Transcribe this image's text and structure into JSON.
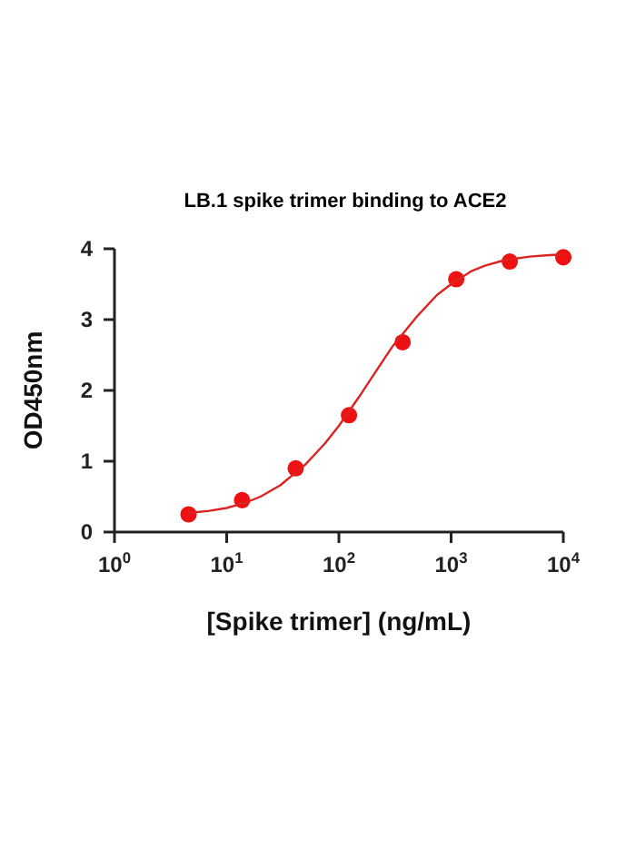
{
  "chart_data": {
    "type": "scatter",
    "title": "LB.1 spike trimer binding to ACE2",
    "xlabel": "[Spike trimer] (ng/mL)",
    "ylabel": "OD450nm",
    "log": "x",
    "xlim": [
      1,
      10000
    ],
    "xticks": [
      {
        "value": 1,
        "label": "10$^{0}$"
      },
      {
        "value": 10,
        "label": "10$^{1}$"
      },
      {
        "value": 100,
        "label": "10$^{2}$"
      },
      {
        "value": 1000,
        "label": "10$^{3}$"
      },
      {
        "value": 10000,
        "label": "10$^{4}$"
      }
    ],
    "ylim": [
      0,
      4
    ],
    "yticks": [
      0,
      1,
      2,
      3,
      4
    ],
    "grid": false,
    "series": [
      {
        "marker": "circle",
        "color": "#ee1111",
        "x": [
          4.57,
          13.7,
          41.2,
          123,
          370,
          1111,
          3333,
          10000
        ],
        "values": [
          0.25,
          0.45,
          0.9,
          1.65,
          2.68,
          3.57,
          3.82,
          3.88
        ]
      },
      {
        "type": "line",
        "marker": "none",
        "line_style": "solid",
        "color": "#dd2222",
        "x": [
          4.57,
          7,
          10,
          15,
          20,
          30,
          50,
          75,
          100,
          150,
          200,
          300,
          500,
          750,
          1000,
          1500,
          2000,
          3000,
          5000,
          7500,
          10000
        ],
        "values": [
          0.27,
          0.3,
          0.34,
          0.42,
          0.5,
          0.66,
          0.95,
          1.25,
          1.5,
          1.9,
          2.2,
          2.62,
          3.05,
          3.35,
          3.5,
          3.68,
          3.76,
          3.84,
          3.89,
          3.91,
          3.92
        ]
      }
    ]
  }
}
